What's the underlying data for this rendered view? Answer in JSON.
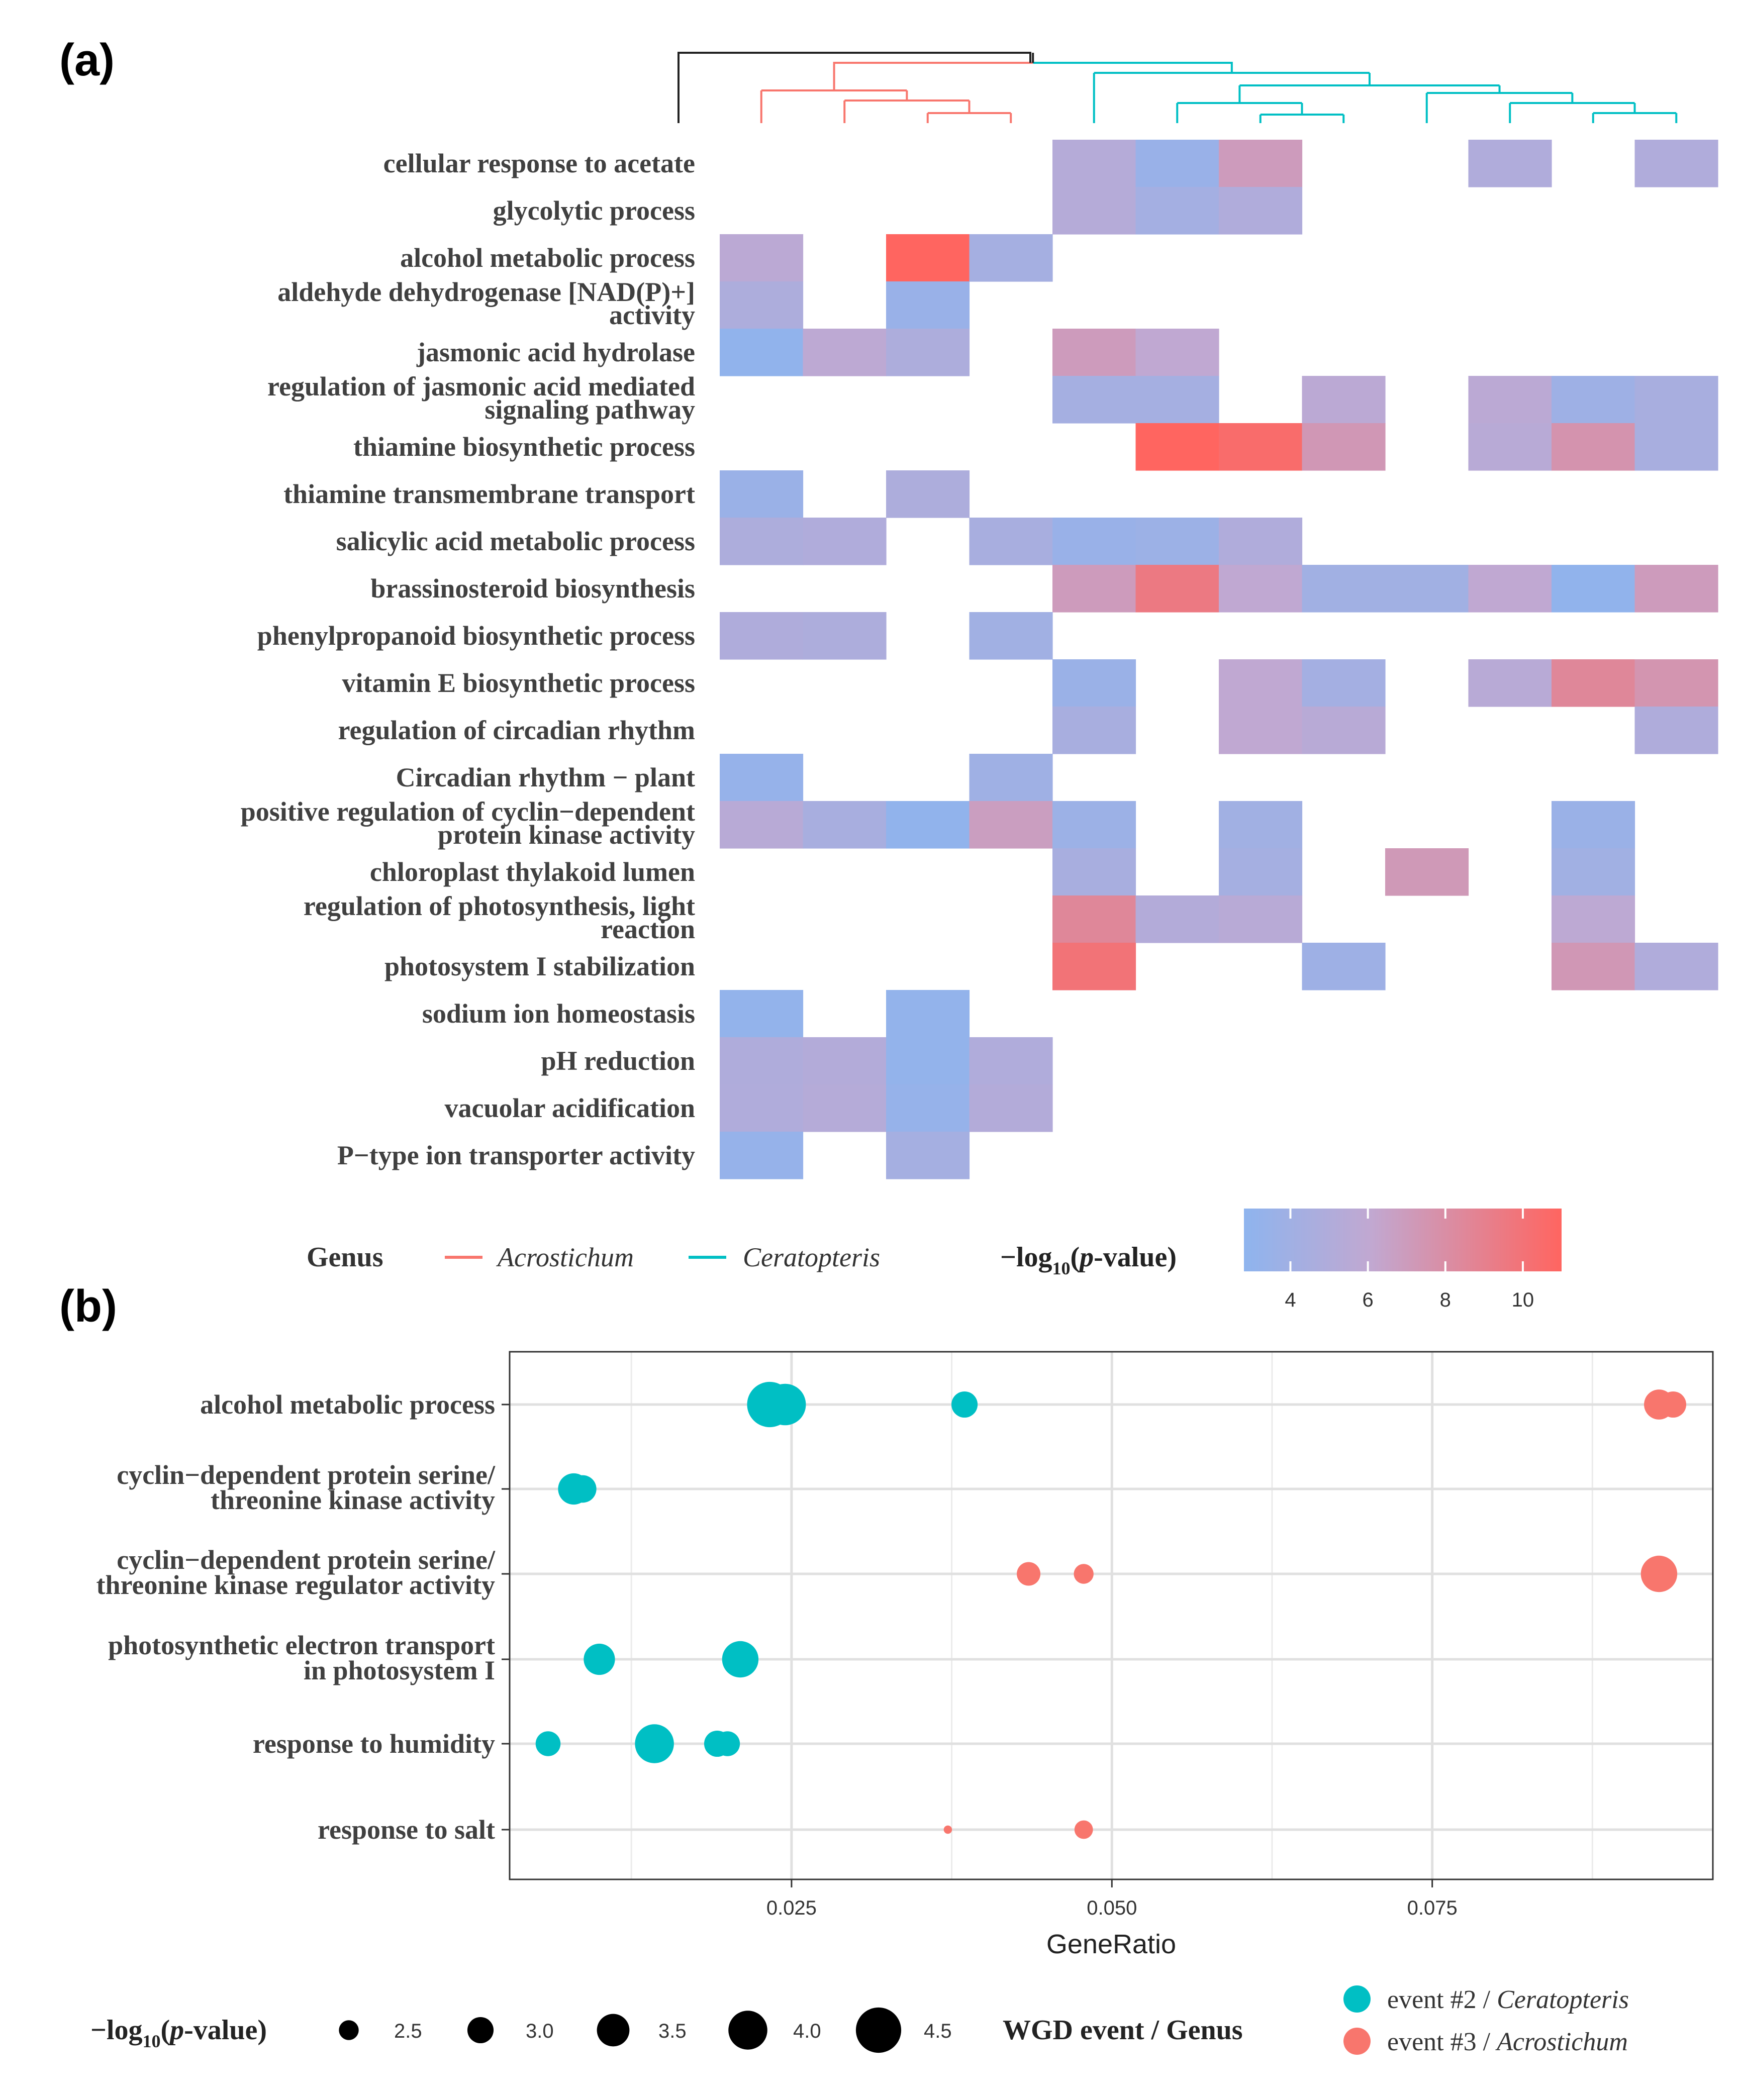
{
  "panel_a": {
    "label": "(a)",
    "rows": [
      [
        "cellular response to acetate"
      ],
      [
        "glycolytic process"
      ],
      [
        "alcohol metabolic process"
      ],
      [
        "aldehyde dehydrogenase [NAD(P)+]",
        "activity"
      ],
      [
        "jasmonic acid hydrolase"
      ],
      [
        "regulation of jasmonic acid mediated",
        "signaling pathway"
      ],
      [
        "thiamine biosynthetic process"
      ],
      [
        "thiamine transmembrane transport"
      ],
      [
        "salicylic acid metabolic process"
      ],
      [
        "brassinosteroid biosynthesis"
      ],
      [
        "phenylpropanoid biosynthetic process"
      ],
      [
        "vitamin E biosynthetic process"
      ],
      [
        "regulation of circadian rhythm"
      ],
      [
        "Circadian rhythm − plant"
      ],
      [
        "positive regulation of cyclin−dependent",
        "protein kinase activity"
      ],
      [
        "chloroplast thylakoid lumen"
      ],
      [
        "regulation of photosynthesis, light",
        "reaction"
      ],
      [
        "photosystem I stabilization"
      ],
      [
        "sodium ion homeostasis"
      ],
      [
        "pH reduction"
      ],
      [
        "vacuolar acidification"
      ],
      [
        "P−type ion transporter activity"
      ]
    ],
    "legend": {
      "genus_title": "Genus",
      "genus_items": [
        {
          "name": "Acrostichum",
          "color": "#F8766D"
        },
        {
          "name": "Ceratopteris",
          "color": "#00BFC4"
        }
      ],
      "pvalue_title_pre": "−log",
      "pvalue_title_sub": "10",
      "pvalue_title_p": "p",
      "pvalue_title_post": "-value)",
      "pvalue_title_open": "(",
      "ticks": [
        "4",
        "6",
        "8",
        "10"
      ]
    }
  },
  "chart_data": [
    {
      "type": "heatmap",
      "title": "(a)",
      "columns": 12,
      "column_genus": [
        "Acrostichum",
        "Acrostichum",
        "Acrostichum",
        "Acrostichum",
        "Ceratopteris",
        "Ceratopteris",
        "Ceratopteris",
        "Ceratopteris",
        "Ceratopteris",
        "Ceratopteris",
        "Ceratopteris",
        "Ceratopteris"
      ],
      "value_range": [
        2.8,
        11
      ],
      "colorbar_ticks": [
        4,
        6,
        8,
        10
      ],
      "colors": {
        "low": "#8EB4EE",
        "mid": "#C1A8D1",
        "high": "#FF6560"
      },
      "values": [
        [
          null,
          null,
          null,
          null,
          5.3,
          3.5,
          7.0,
          null,
          null,
          5.0,
          null,
          5.0
        ],
        [
          null,
          null,
          null,
          null,
          5.3,
          4.2,
          5.0,
          null,
          null,
          null,
          null,
          null
        ],
        [
          5.7,
          null,
          11.0,
          4.3,
          null,
          null,
          null,
          null,
          null,
          null,
          null,
          null
        ],
        [
          4.8,
          null,
          3.5,
          null,
          null,
          null,
          null,
          null,
          null,
          null,
          null,
          null
        ],
        [
          3.0,
          5.8,
          4.8,
          null,
          7.0,
          6.0,
          null,
          null,
          null,
          null,
          null,
          null
        ],
        [
          null,
          null,
          null,
          null,
          4.3,
          4.3,
          null,
          5.7,
          null,
          5.7,
          3.8,
          4.5
        ],
        [
          null,
          null,
          null,
          null,
          null,
          11.0,
          10.5,
          7.3,
          null,
          5.5,
          7.6,
          4.5
        ],
        [
          3.6,
          null,
          4.8,
          null,
          null,
          null,
          null,
          null,
          null,
          null,
          null,
          null
        ],
        [
          4.8,
          5.0,
          null,
          4.5,
          3.5,
          3.7,
          5.0,
          null,
          null,
          null,
          null,
          null
        ],
        [
          null,
          null,
          null,
          null,
          7.0,
          9.5,
          6.0,
          4.0,
          4.0,
          6.0,
          3.0,
          7.0
        ],
        [
          4.9,
          4.8,
          null,
          4.0,
          null,
          null,
          null,
          null,
          null,
          null,
          null,
          null
        ],
        [
          null,
          null,
          null,
          null,
          3.6,
          null,
          6.0,
          4.2,
          null,
          5.5,
          8.5,
          7.5
        ],
        [
          null,
          null,
          null,
          null,
          4.5,
          null,
          6.0,
          5.5,
          null,
          null,
          null,
          4.9
        ],
        [
          3.3,
          null,
          null,
          3.9,
          null,
          null,
          null,
          null,
          null,
          null,
          null,
          null
        ],
        [
          5.5,
          4.5,
          3.0,
          6.8,
          3.7,
          null,
          4.0,
          null,
          null,
          null,
          3.6,
          null
        ],
        [
          null,
          null,
          null,
          null,
          4.5,
          null,
          4.3,
          null,
          7.2,
          null,
          4.0,
          null
        ],
        [
          null,
          null,
          null,
          null,
          8.5,
          5.2,
          5.5,
          null,
          null,
          null,
          5.8,
          null
        ],
        [
          null,
          null,
          null,
          null,
          10.0,
          null,
          null,
          3.8,
          null,
          null,
          7.3,
          5.0
        ],
        [
          3.1,
          null,
          3.1,
          null,
          null,
          null,
          null,
          null,
          null,
          null,
          null,
          null
        ],
        [
          4.9,
          5.2,
          3.1,
          5.0,
          null,
          null,
          null,
          null,
          null,
          null,
          null,
          null
        ],
        [
          5.0,
          5.3,
          3.3,
          5.2,
          null,
          null,
          null,
          null,
          null,
          null,
          null,
          null
        ],
        [
          3.3,
          null,
          4.3,
          null,
          null,
          null,
          null,
          null,
          null,
          null,
          null,
          null
        ]
      ]
    },
    {
      "type": "scatter",
      "title": "(b)",
      "xlabel": "GeneRatio",
      "xlim": [
        0.003,
        0.0969
      ],
      "xticks": [
        0.025,
        0.05,
        0.075
      ],
      "xtick_labels": [
        "0.025",
        "0.050",
        "0.075"
      ],
      "categories": [
        [
          "alcohol metabolic process"
        ],
        [
          "cyclin−dependent protein serine/",
          "threonine kinase activity"
        ],
        [
          "cyclin−dependent protein serine/",
          "threonine kinase regulator activity"
        ],
        [
          "photosynthetic electron transport",
          "in photosystem I"
        ],
        [
          "response to humidity"
        ],
        [
          "response to salt"
        ]
      ],
      "size_legend_title_pre": "−log",
      "size_legend_title_sub": "10",
      "size_legend_title_p": "p",
      "size_legend_title_post": "-value)",
      "size_legend_title_open": "(",
      "size_legend": [
        {
          "value": 2.5,
          "label": "2.5"
        },
        {
          "value": 3.0,
          "label": "3.0"
        },
        {
          "value": 3.5,
          "label": "3.5"
        },
        {
          "value": 4.0,
          "label": "4.0"
        },
        {
          "value": 4.5,
          "label": "4.5"
        }
      ],
      "color_legend_title": "WGD event / Genus",
      "series": [
        {
          "name_pre": "event #2 / ",
          "name_genus": "Ceratopteris",
          "color": "#00BFC4",
          "points": [
            {
              "cat": 0,
              "x": 0.0233,
              "p": 4.5
            },
            {
              "cat": 0,
              "x": 0.0245,
              "p": 4.2
            },
            {
              "cat": 0,
              "x": 0.0385,
              "p": 3.0
            },
            {
              "cat": 1,
              "x": 0.008,
              "p": 3.4
            },
            {
              "cat": 1,
              "x": 0.0087,
              "p": 3.1
            },
            {
              "cat": 3,
              "x": 0.01,
              "p": 3.4
            },
            {
              "cat": 3,
              "x": 0.021,
              "p": 3.8
            },
            {
              "cat": 4,
              "x": 0.006,
              "p": 2.9
            },
            {
              "cat": 4,
              "x": 0.0143,
              "p": 4.0
            },
            {
              "cat": 4,
              "x": 0.0192,
              "p": 3.0
            },
            {
              "cat": 4,
              "x": 0.02,
              "p": 2.9
            }
          ]
        },
        {
          "name_pre": "event #3 / ",
          "name_genus": "Acrostichum",
          "color": "#F8766D",
          "points": [
            {
              "cat": 0,
              "x": 0.0927,
              "p": 3.3
            },
            {
              "cat": 0,
              "x": 0.0938,
              "p": 3.0
            },
            {
              "cat": 2,
              "x": 0.0435,
              "p": 2.8
            },
            {
              "cat": 2,
              "x": 0.0478,
              "p": 2.5
            },
            {
              "cat": 2,
              "x": 0.0927,
              "p": 3.8
            },
            {
              "cat": 5,
              "x": 0.0372,
              "p": 1.6
            },
            {
              "cat": 5,
              "x": 0.0478,
              "p": 2.4
            }
          ]
        }
      ]
    }
  ]
}
